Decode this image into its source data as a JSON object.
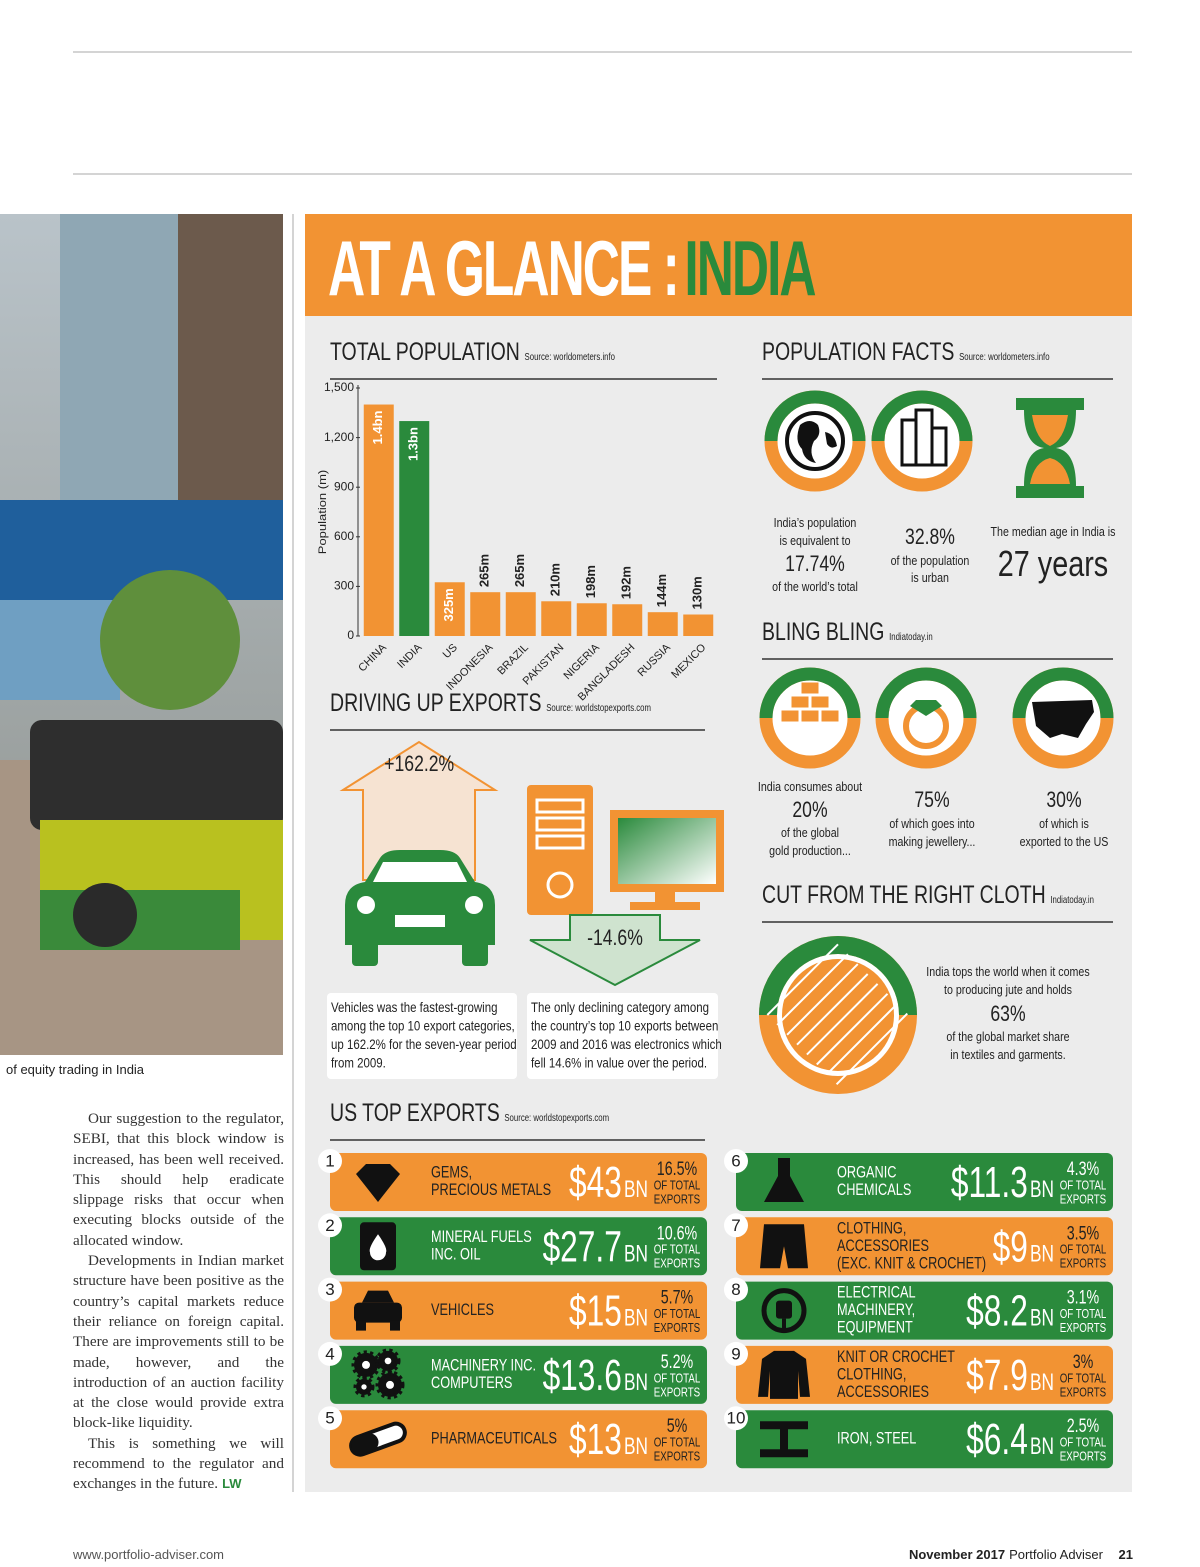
{
  "masthead": {
    "title_a": "AT A GLANCE :",
    "title_b": "INDIA"
  },
  "photo_caption": "of equity trading in India",
  "article": {
    "paragraphs": [
      "Our suggestion to the regulator, SEBI, that this block window is increased, has been well received. This should help eradicate slippage risks that occur when executing blocks outside of the allocated window.",
      "Developments in Indian market structure have been positive as the country’s capital markets reduce their reliance on foreign capital. There are improvements still to be made, however, and the introduction of an auction facility at the close would provide extra block-like liquidity.",
      "This is something we will recommend to the regulator and exchanges in the future."
    ],
    "signoff": "LW"
  },
  "footer": {
    "url": "www.portfolio-adviser.com",
    "date": "November 2017",
    "publication": "Portfolio Adviser",
    "page": "21"
  },
  "chart_data": {
    "type": "bar",
    "title": "TOTAL POPULATION",
    "source": "Source: worldometers.info",
    "y_label": "Population (m)",
    "categories": [
      "CHINA",
      "INDIA",
      "US",
      "INDONESIA",
      "BRAZIL",
      "PAKISTAN",
      "NIGERIA",
      "BANGLADESH",
      "RUSSIA",
      "MEXICO"
    ],
    "values": [
      1400,
      1300,
      325,
      265,
      265,
      210,
      198,
      192,
      144,
      130
    ],
    "value_labels": [
      "1.4bn",
      "1.3bn",
      "325m",
      "265m",
      "265m",
      "210m",
      "198m",
      "192m",
      "144m",
      "130m"
    ],
    "colors": [
      "#f29333",
      "#2a8a3c",
      "#f29333",
      "#f29333",
      "#f29333",
      "#f29333",
      "#f29333",
      "#f29333",
      "#f29333",
      "#f29333"
    ],
    "ylim": [
      0,
      1500
    ],
    "yticks": [
      0,
      300,
      600,
      900,
      {
        "value": 1200,
        "label": "1,200"
      },
      {
        "value": 1500,
        "label": "1,500"
      }
    ],
    "grid": false
  },
  "population_facts": {
    "title": "POPULATION FACTS",
    "source": "Source: worldometers.info",
    "items": [
      {
        "lines": [
          "India’s population",
          "is equivalent to"
        ],
        "figure": "17.74%",
        "note": [
          "of the world’s total"
        ]
      },
      {
        "lines": [],
        "figure": "32.8%",
        "note": [
          "of the population",
          "is urban"
        ]
      },
      {
        "lines": [
          "The median age in India is"
        ],
        "figure": "27 years",
        "note": []
      }
    ]
  },
  "bling": {
    "title": "BLING BLING",
    "source": "Indiatoday.in",
    "items": [
      {
        "lines": [
          "India consumes about"
        ],
        "figure": "20%",
        "note": [
          "of the global",
          "gold production..."
        ]
      },
      {
        "lines": [],
        "figure": "75%",
        "note": [
          "of which goes into",
          "making jewellery..."
        ]
      },
      {
        "lines": [],
        "figure": "30%",
        "note": [
          "of which is",
          "exported to the US"
        ]
      }
    ]
  },
  "cloth": {
    "title": "CUT FROM THE RIGHT CLOTH",
    "source": "Indiatoday.in",
    "lines": [
      "India tops the world when it comes",
      "to producing jute and holds"
    ],
    "figure": "63%",
    "note": [
      "of the global market share",
      "in textiles and garments."
    ]
  },
  "exports": {
    "title": "DRIVING UP EXPORTS",
    "source": "Source: worldstopexports.com",
    "rise": "+162.2%",
    "fall": "-14.6%",
    "notes": [
      [
        "Vehicles was the fastest-growing",
        "among the top 10 export categories,",
        "up 162.2% for the seven-year period",
        "from 2009."
      ],
      [
        "The only declining category among",
        "the country’s top 10 exports between",
        "2009 and 2016 was electronics which",
        "fell 14.6% in value over the period."
      ]
    ]
  },
  "us_exports": {
    "title": "US TOP EXPORTS",
    "source": "Source: worldstopexports.com",
    "items": [
      {
        "rank": "1",
        "name": [
          "GEMS,",
          "PRECIOUS METALS"
        ],
        "value": "$43",
        "unit": "BN",
        "share": "16.5%",
        "share_note": [
          "OF TOTAL",
          "EXPORTS"
        ]
      },
      {
        "rank": "2",
        "name": [
          "MINERAL FUELS",
          "INC. OIL"
        ],
        "value": "$27.7",
        "unit": "BN",
        "share": "10.6%",
        "share_note": [
          "OF TOTAL",
          "EXPORTS"
        ]
      },
      {
        "rank": "3",
        "name": [
          "VEHICLES"
        ],
        "value": "$15",
        "unit": "BN",
        "share": "5.7%",
        "share_note": [
          "OF TOTAL",
          "EXPORTS"
        ]
      },
      {
        "rank": "4",
        "name": [
          "MACHINERY INC.",
          "COMPUTERS"
        ],
        "value": "$13.6",
        "unit": "BN",
        "share": "5.2%",
        "share_note": [
          "OF TOTAL",
          "EXPORTS"
        ]
      },
      {
        "rank": "5",
        "name": [
          "PHARMACEUTICALS"
        ],
        "value": "$13",
        "unit": "BN",
        "share": "5%",
        "share_note": [
          "OF TOTAL",
          "EXPORTS"
        ]
      },
      {
        "rank": "6",
        "name": [
          "ORGANIC",
          "CHEMICALS"
        ],
        "value": "$11.3",
        "unit": "BN",
        "share": "4.3%",
        "share_note": [
          "OF TOTAL",
          "EXPORTS"
        ]
      },
      {
        "rank": "7",
        "name": [
          "CLOTHING,",
          "ACCESSORIES",
          "(EXC. KNIT & CROCHET)"
        ],
        "value": "$9",
        "unit": "BN",
        "share": "3.5%",
        "share_note": [
          "OF TOTAL",
          "EXPORTS"
        ]
      },
      {
        "rank": "8",
        "name": [
          "ELECTRICAL",
          "MACHINERY,",
          "EQUIPMENT"
        ],
        "value": "$8.2",
        "unit": "BN",
        "share": "3.1%",
        "share_note": [
          "OF TOTAL",
          "EXPORTS"
        ]
      },
      {
        "rank": "9",
        "name": [
          "KNIT OR CROCHET",
          "CLOTHING,",
          "ACCESSORIES"
        ],
        "value": "$7.9",
        "unit": "BN",
        "share": "3%",
        "share_note": [
          "OF TOTAL",
          "EXPORTS"
        ]
      },
      {
        "rank": "10",
        "name": [
          "IRON, STEEL"
        ],
        "value": "$6.4",
        "unit": "BN",
        "share": "2.5%",
        "share_note": [
          "OF TOTAL",
          "EXPORTS"
        ]
      }
    ]
  }
}
